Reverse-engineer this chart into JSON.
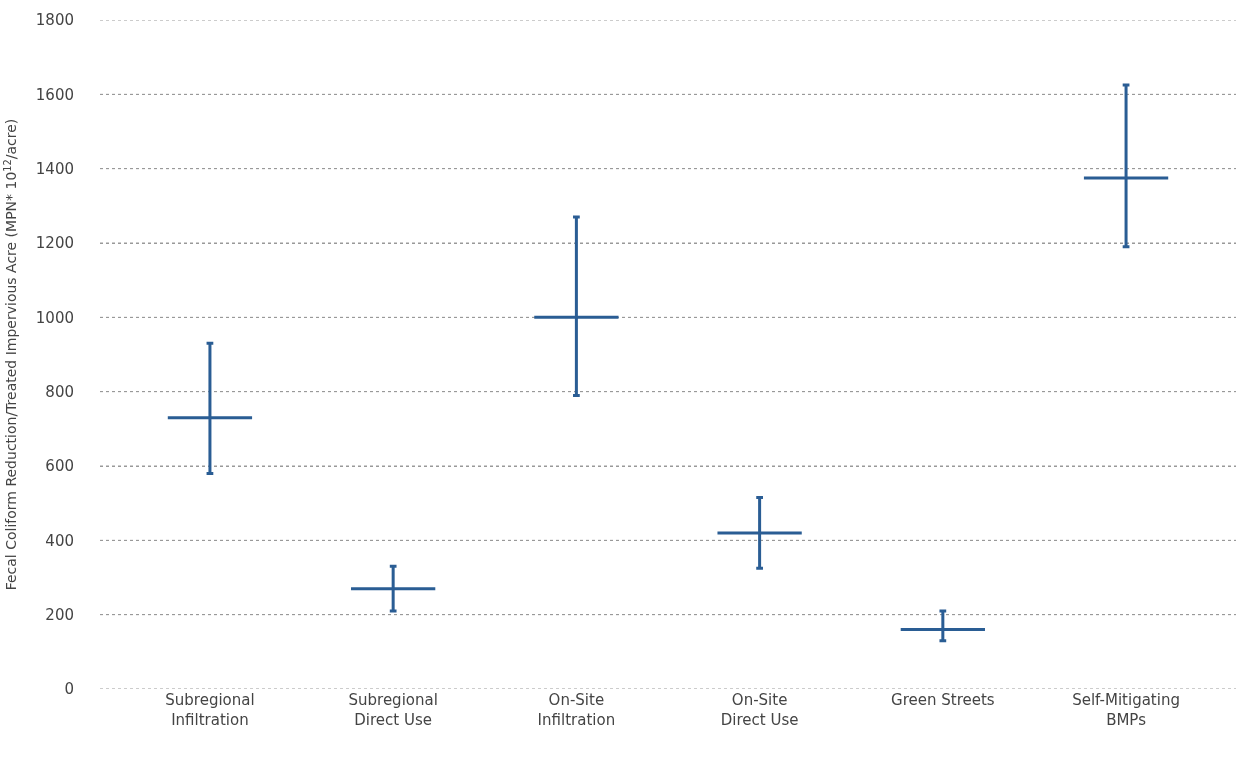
{
  "chart_data": {
    "type": "box",
    "ylabel": "Fecal Coliform Reduction/Treated Impervious Acre (MPN* 10$^{12}$/acre)",
    "categories": [
      "Subregional\nInfiltration",
      "Subregional\nDirect Use",
      "On-Site\nInfiltration",
      "On-Site\nDirect Use",
      "Green Streets",
      "Self-Mitigating\nBMPs"
    ],
    "series": [
      {
        "color": "#2a5d94",
        "boxes": [
          {
            "low": 580,
            "q1": 730,
            "median": 730,
            "q3": 730,
            "high": 930
          },
          {
            "low": 210,
            "q1": 270,
            "median": 270,
            "q3": 270,
            "high": 330
          },
          {
            "low": 790,
            "q1": 1000,
            "median": 1000,
            "q3": 1000,
            "high": 1270
          },
          {
            "low": 325,
            "q1": 420,
            "median": 420,
            "q3": 420,
            "high": 515
          },
          {
            "low": 130,
            "q1": 160,
            "median": 160,
            "q3": 160,
            "high": 210
          },
          {
            "low": 1190,
            "q1": 1375,
            "median": 1375,
            "q3": 1375,
            "high": 1625
          }
        ]
      }
    ],
    "ylim": [
      0,
      1800
    ],
    "yticks": [
      0,
      200,
      400,
      600,
      800,
      1000,
      1200,
      1400,
      1600,
      1800
    ],
    "grid": "y"
  }
}
